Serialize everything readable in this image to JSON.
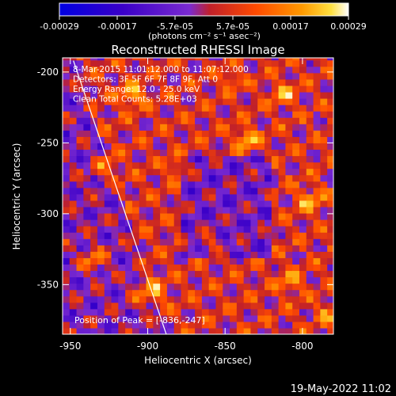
{
  "chart_data": {
    "type": "heatmap",
    "title": "Reconstructed RHESSI Image",
    "xlabel": "Heliocentric X (arcsec)",
    "ylabel": "Heliocentric Y (arcsec)",
    "xlim": [
      -955,
      -780
    ],
    "ylim": [
      -385,
      -190
    ],
    "xticks": [
      -950,
      -900,
      -850,
      -800
    ],
    "yticks": [
      -200,
      -250,
      -300,
      -350
    ],
    "colorbar": {
      "ticks": [
        "-0.00029",
        "-0.00017",
        "-5.7e-05",
        "5.7e-05",
        "0.00017",
        "0.00029"
      ],
      "unit_label": "(photons cm⁻² s⁻¹ asec⁻²)",
      "range": [
        -0.00029,
        0.00029
      ],
      "colors": [
        "#0000e0",
        "#3a00c8",
        "#7a2ad0",
        "#c0202a",
        "#ff4a00",
        "#ff9a00",
        "#ffe040",
        "#ffffff"
      ]
    },
    "annotations": [
      "8-Mar-2015 11:01:12.000 to 11:07:12.000",
      "Detectors: 3F 5F 6F 7F 8F 9F, Att 0",
      "Energy Range: 12.0 - 25.0 keV",
      "Clean     Total Counts: 5.28E+03"
    ],
    "peak_label": "Position of Peak = [-836,-247]",
    "peak": [
      -836,
      -247
    ],
    "limb_line": [
      [
        -948,
        -192
      ],
      [
        -888,
        -385
      ]
    ],
    "grid": false
  },
  "footer": {
    "timestamp": "19-May-2022 11:02"
  }
}
